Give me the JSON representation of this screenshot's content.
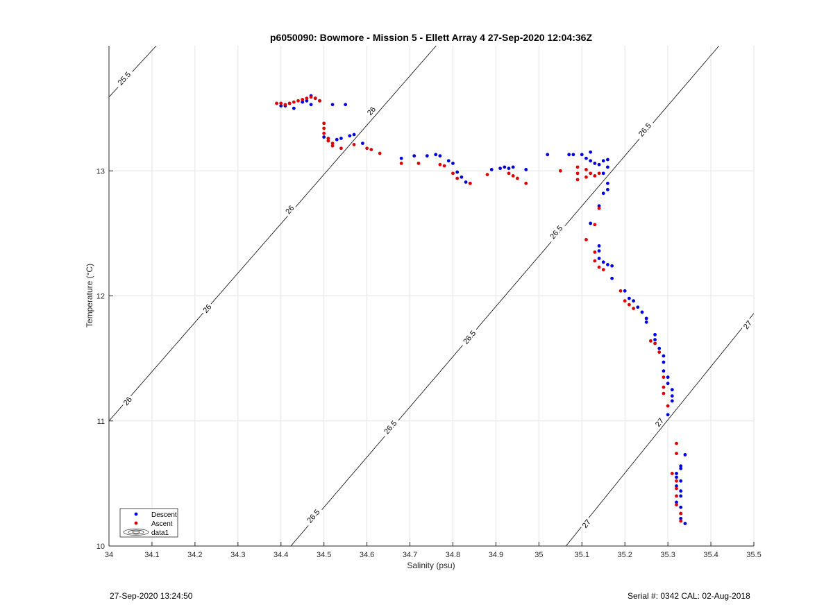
{
  "chart_data": {
    "type": "scatter",
    "title": "p6050090: Bowmore - Mission 5 - Ellett Array 4 27-Sep-2020 12:04:36Z",
    "xlabel": "Salinity (psu)",
    "ylabel": "Temperature (°C)",
    "xlim": [
      34,
      35.5
    ],
    "ylim": [
      10,
      14
    ],
    "xticks": [
      "34",
      "34.1",
      "34.2",
      "34.3",
      "34.4",
      "34.5",
      "34.6",
      "34.7",
      "34.8",
      "34.9",
      "35",
      "35.1",
      "35.2",
      "35.3",
      "35.4",
      "35.5"
    ],
    "yticks": [
      "10",
      "11",
      "12",
      "13"
    ],
    "grid": true,
    "legend": {
      "placement": "bottom-left",
      "entries": [
        "Descent",
        "Ascent",
        "data1"
      ]
    },
    "colors": {
      "descent": "#0000dd",
      "ascent": "#dd0000",
      "contour": "#000000",
      "grid": "#e3e3e3"
    },
    "contours": [
      {
        "level": "25.5",
        "segment": [
          [
            34.0,
            13.59
          ],
          [
            34.11,
            14.0
          ]
        ]
      },
      {
        "level": "26",
        "segment": [
          [
            34.0,
            11.0
          ],
          [
            34.761,
            14.0
          ]
        ]
      },
      {
        "level": "26.5",
        "segment": [
          [
            34.423,
            10.0
          ],
          [
            35.419,
            14.0
          ]
        ]
      },
      {
        "level": "27",
        "segment": [
          [
            35.063,
            10.0
          ],
          [
            35.5,
            11.86
          ]
        ]
      }
    ],
    "contour_labels": [
      {
        "text": "25.5",
        "x": 34.035,
        "y": 13.74
      },
      {
        "text": "26",
        "x": 34.61,
        "y": 13.48
      },
      {
        "text": "26",
        "x": 34.42,
        "y": 12.69
      },
      {
        "text": "26",
        "x": 34.228,
        "y": 11.9
      },
      {
        "text": "26",
        "x": 34.043,
        "y": 11.16
      },
      {
        "text": "26.5",
        "x": 35.246,
        "y": 13.33
      },
      {
        "text": "26.5",
        "x": 35.04,
        "y": 12.51
      },
      {
        "text": "26.5",
        "x": 34.838,
        "y": 11.67
      },
      {
        "text": "26.5",
        "x": 34.654,
        "y": 10.95
      },
      {
        "text": "26.5",
        "x": 34.475,
        "y": 10.24
      },
      {
        "text": "27",
        "x": 35.485,
        "y": 11.77
      },
      {
        "text": "27",
        "x": 35.28,
        "y": 10.99
      },
      {
        "text": "27",
        "x": 35.11,
        "y": 10.18
      }
    ],
    "series": [
      {
        "name": "Descent",
        "points": [
          [
            34.4,
            13.52
          ],
          [
            34.41,
            13.52
          ],
          [
            34.42,
            13.54
          ],
          [
            34.43,
            13.5
          ],
          [
            34.45,
            13.55
          ],
          [
            34.46,
            13.56
          ],
          [
            34.47,
            13.53
          ],
          [
            34.47,
            13.6
          ],
          [
            34.48,
            13.58
          ],
          [
            34.49,
            13.56
          ],
          [
            34.52,
            13.53
          ],
          [
            34.55,
            13.53
          ],
          [
            34.5,
            13.27
          ],
          [
            34.53,
            13.25
          ],
          [
            34.54,
            13.26
          ],
          [
            34.56,
            13.28
          ],
          [
            34.57,
            13.29
          ],
          [
            34.59,
            13.22
          ],
          [
            34.68,
            13.1
          ],
          [
            34.71,
            13.12
          ],
          [
            34.74,
            13.12
          ],
          [
            34.76,
            13.13
          ],
          [
            34.77,
            13.12
          ],
          [
            34.79,
            13.08
          ],
          [
            34.8,
            13.06
          ],
          [
            34.81,
            12.99
          ],
          [
            34.82,
            12.95
          ],
          [
            34.83,
            12.91
          ],
          [
            34.84,
            12.9
          ],
          [
            34.89,
            13.01
          ],
          [
            34.91,
            13.02
          ],
          [
            34.92,
            13.03
          ],
          [
            34.93,
            13.02
          ],
          [
            34.94,
            13.03
          ],
          [
            34.97,
            13.01
          ],
          [
            35.02,
            13.13
          ],
          [
            35.07,
            13.13
          ],
          [
            35.08,
            13.13
          ],
          [
            35.1,
            13.13
          ],
          [
            35.11,
            13.1
          ],
          [
            35.12,
            13.15
          ],
          [
            35.12,
            13.08
          ],
          [
            35.13,
            13.06
          ],
          [
            35.14,
            13.05
          ],
          [
            35.15,
            13.08
          ],
          [
            35.16,
            13.09
          ],
          [
            35.16,
            13.03
          ],
          [
            35.15,
            12.98
          ],
          [
            35.16,
            12.9
          ],
          [
            35.16,
            12.85
          ],
          [
            35.15,
            12.82
          ],
          [
            35.14,
            12.72
          ],
          [
            35.12,
            12.58
          ],
          [
            35.14,
            12.4
          ],
          [
            35.14,
            12.36
          ],
          [
            35.14,
            12.3
          ],
          [
            35.15,
            12.27
          ],
          [
            35.16,
            12.25
          ],
          [
            35.17,
            12.24
          ],
          [
            35.17,
            12.14
          ],
          [
            35.2,
            12.04
          ],
          [
            35.21,
            11.98
          ],
          [
            35.22,
            11.96
          ],
          [
            35.23,
            11.91
          ],
          [
            35.24,
            11.87
          ],
          [
            35.25,
            11.82
          ],
          [
            35.25,
            11.79
          ],
          [
            35.27,
            11.69
          ],
          [
            35.27,
            11.65
          ],
          [
            35.28,
            11.58
          ],
          [
            35.29,
            11.52
          ],
          [
            35.29,
            11.47
          ],
          [
            35.29,
            11.4
          ],
          [
            35.3,
            11.35
          ],
          [
            35.3,
            11.3
          ],
          [
            35.31,
            11.25
          ],
          [
            35.31,
            11.2
          ],
          [
            35.31,
            11.16
          ],
          [
            35.3,
            11.05
          ],
          [
            35.34,
            10.73
          ],
          [
            35.33,
            10.64
          ],
          [
            35.33,
            10.62
          ],
          [
            35.32,
            10.58
          ],
          [
            35.32,
            10.55
          ],
          [
            35.33,
            10.52
          ],
          [
            35.32,
            10.48
          ],
          [
            35.33,
            10.44
          ],
          [
            35.33,
            10.4
          ],
          [
            35.32,
            10.35
          ],
          [
            35.33,
            10.31
          ],
          [
            35.33,
            10.26
          ],
          [
            35.33,
            10.22
          ],
          [
            35.34,
            10.18
          ]
        ]
      },
      {
        "name": "Ascent",
        "points": [
          [
            34.39,
            13.54
          ],
          [
            34.4,
            13.54
          ],
          [
            34.41,
            13.53
          ],
          [
            34.42,
            13.54
          ],
          [
            34.43,
            13.55
          ],
          [
            34.44,
            13.56
          ],
          [
            34.45,
            13.57
          ],
          [
            34.46,
            13.58
          ],
          [
            34.47,
            13.59
          ],
          [
            34.48,
            13.58
          ],
          [
            34.49,
            13.56
          ],
          [
            34.5,
            13.38
          ],
          [
            34.5,
            13.34
          ],
          [
            34.5,
            13.3
          ],
          [
            34.51,
            13.26
          ],
          [
            34.51,
            13.24
          ],
          [
            34.52,
            13.22
          ],
          [
            34.52,
            13.2
          ],
          [
            34.54,
            13.18
          ],
          [
            34.57,
            13.21
          ],
          [
            34.6,
            13.18
          ],
          [
            34.61,
            13.17
          ],
          [
            34.63,
            13.14
          ],
          [
            34.68,
            13.06
          ],
          [
            34.72,
            13.06
          ],
          [
            34.77,
            13.05
          ],
          [
            34.78,
            13.04
          ],
          [
            34.8,
            12.98
          ],
          [
            34.81,
            12.94
          ],
          [
            34.84,
            12.9
          ],
          [
            34.88,
            12.97
          ],
          [
            34.93,
            12.98
          ],
          [
            34.94,
            12.96
          ],
          [
            34.95,
            12.94
          ],
          [
            34.97,
            12.9
          ],
          [
            35.05,
            13.0
          ],
          [
            35.09,
            13.03
          ],
          [
            35.09,
            12.98
          ],
          [
            35.09,
            12.93
          ],
          [
            35.11,
            13.01
          ],
          [
            35.11,
            12.95
          ],
          [
            35.12,
            12.98
          ],
          [
            35.13,
            12.96
          ],
          [
            35.14,
            12.98
          ],
          [
            35.14,
            12.7
          ],
          [
            35.13,
            12.57
          ],
          [
            35.11,
            12.45
          ],
          [
            35.13,
            12.35
          ],
          [
            35.13,
            12.28
          ],
          [
            35.14,
            12.23
          ],
          [
            35.15,
            12.21
          ],
          [
            35.19,
            12.04
          ],
          [
            35.2,
            11.96
          ],
          [
            35.21,
            11.93
          ],
          [
            35.22,
            11.9
          ],
          [
            35.26,
            11.64
          ],
          [
            35.27,
            11.62
          ],
          [
            35.28,
            11.55
          ],
          [
            35.29,
            11.35
          ],
          [
            35.29,
            11.27
          ],
          [
            35.29,
            11.22
          ],
          [
            35.3,
            11.12
          ],
          [
            35.32,
            10.82
          ],
          [
            35.32,
            10.74
          ],
          [
            35.31,
            10.58
          ],
          [
            35.32,
            10.52
          ],
          [
            35.32,
            10.46
          ],
          [
            35.32,
            10.4
          ],
          [
            35.32,
            10.33
          ],
          [
            35.33,
            10.26
          ],
          [
            35.33,
            10.2
          ]
        ]
      }
    ]
  },
  "footer": {
    "left": "27-Sep-2020 13:24:50",
    "right": "Serial #: 0342  CAL: 02-Aug-2018"
  }
}
